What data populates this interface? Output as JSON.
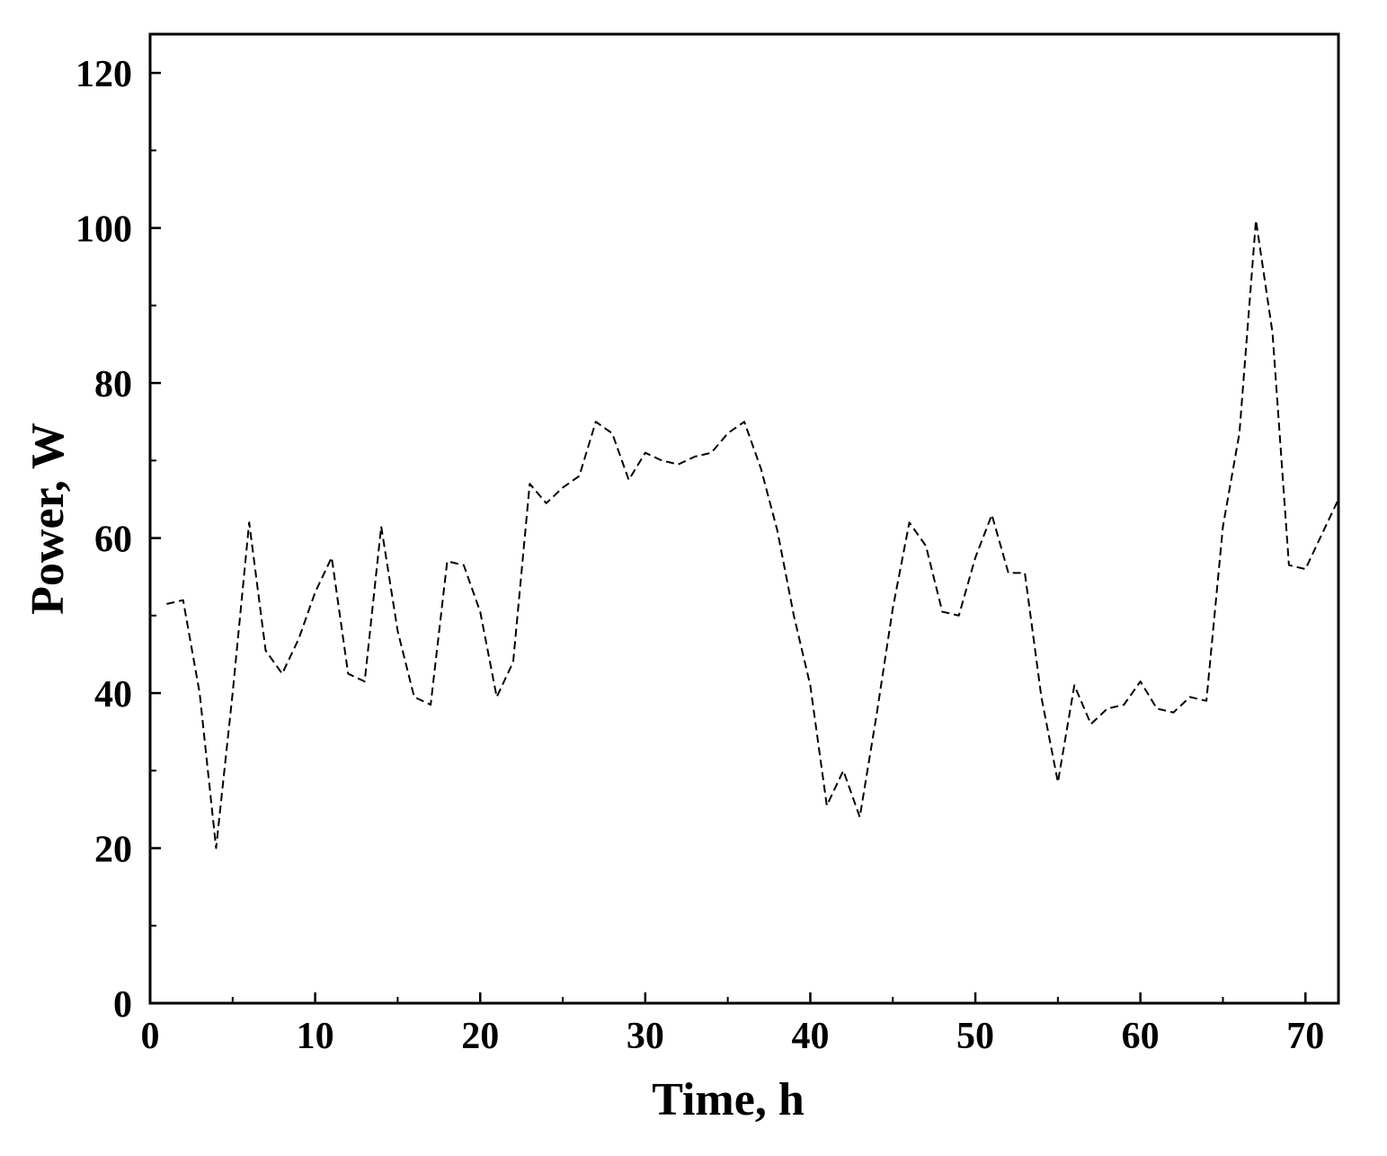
{
  "chart_data": {
    "type": "line",
    "title": "",
    "xlabel": "Time, h",
    "ylabel": "Power, W",
    "xlim": [
      0,
      72
    ],
    "ylim": [
      0,
      125
    ],
    "xticks": [
      0,
      10,
      20,
      30,
      40,
      50,
      60,
      70
    ],
    "xtick_labels": [
      "0",
      "10",
      "20",
      "30",
      "40",
      "50",
      "60",
      "70"
    ],
    "yticks": [
      0,
      20,
      40,
      60,
      80,
      100,
      120
    ],
    "ytick_labels": [
      "0",
      "20",
      "40",
      "60",
      "80",
      "100",
      "120"
    ],
    "x_minor_step": 5,
    "y_minor_step": 10,
    "grid": false,
    "legend": "none",
    "line_style": "dashed",
    "line_color": "#000000",
    "series": [
      {
        "x": [
          1,
          2,
          3,
          4,
          5,
          6,
          7,
          8,
          9,
          10,
          11,
          12,
          13,
          14,
          15,
          16,
          17,
          18,
          19,
          20,
          21,
          22,
          23,
          24,
          25,
          26,
          27,
          28,
          29,
          30,
          31,
          32,
          33,
          34,
          35,
          36,
          37,
          38,
          39,
          40,
          41,
          42,
          43,
          44,
          45,
          46,
          47,
          48,
          49,
          50,
          51,
          52,
          53,
          54,
          55,
          56,
          57,
          58,
          59,
          60,
          61,
          62,
          63,
          64,
          65,
          66,
          67,
          68,
          69,
          70,
          71,
          72
        ],
        "values": [
          51.5,
          52,
          40,
          20,
          40,
          62,
          45.5,
          42.5,
          47,
          53,
          57.5,
          42.5,
          41.5,
          61.5,
          48,
          39.5,
          38.5,
          57,
          56.5,
          50.5,
          39.5,
          44,
          67,
          64.5,
          66.5,
          68,
          75,
          73.5,
          67.5,
          71,
          70,
          69.5,
          70.5,
          71,
          73.5,
          75,
          69,
          61,
          50,
          41,
          25.5,
          30,
          24,
          37,
          51,
          62,
          59,
          50.5,
          50,
          57.5,
          63,
          55.5,
          55.5,
          39.5,
          28.5,
          41,
          36,
          38,
          38.5,
          41.5,
          38,
          37.5,
          39.5,
          39,
          61.5,
          73.5,
          101,
          86.5,
          56.5,
          56,
          60.5,
          65
        ]
      }
    ]
  }
}
